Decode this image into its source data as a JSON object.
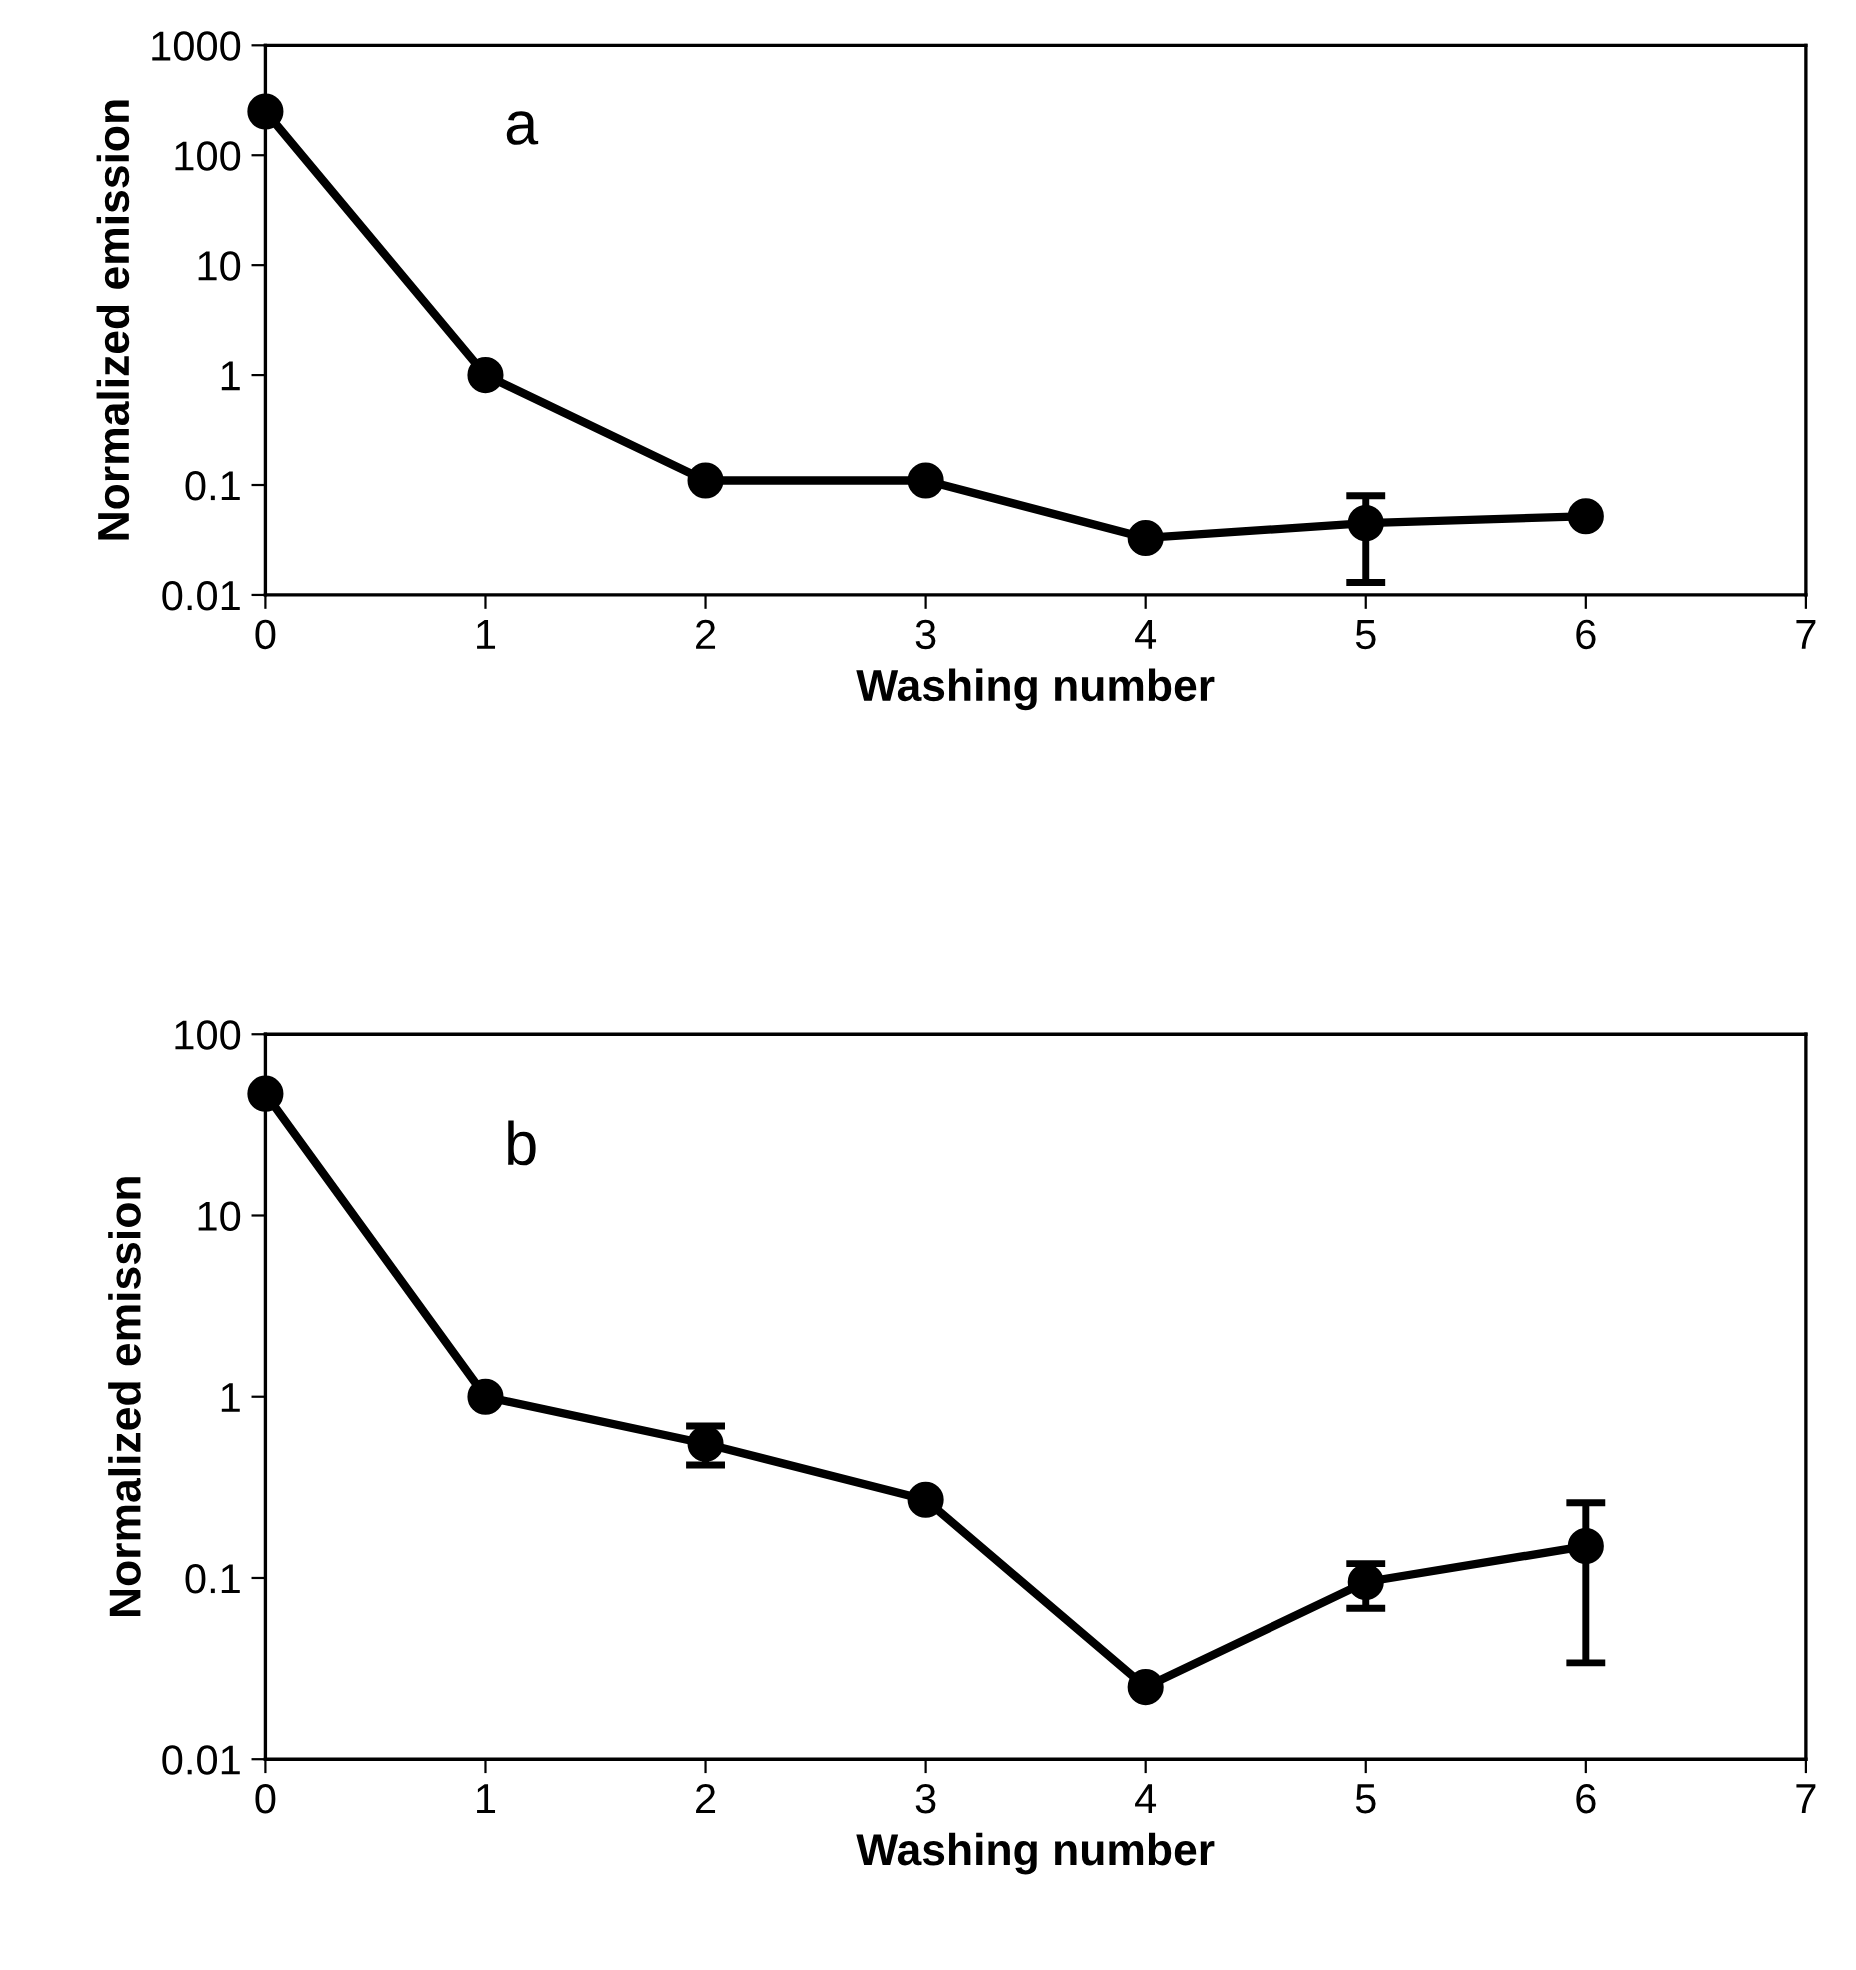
{
  "chart_data": [
    {
      "type": "line",
      "x": [
        0,
        1,
        2,
        3,
        4,
        5,
        6
      ],
      "series": [
        {
          "color": "#000000",
          "values": [
            250,
            1,
            0.11,
            0.11,
            0.033,
            0.045,
            0.052
          ],
          "errors": [
            null,
            null,
            null,
            null,
            null,
            [
              0.013,
              0.08
            ],
            null
          ]
        }
      ],
      "xlabel": "Washing number",
      "ylabel": "Normalized emission",
      "annotations": [
        "a"
      ],
      "log": "y",
      "xlim": [
        0,
        7
      ],
      "xticks": [
        0,
        1,
        2,
        3,
        4,
        5,
        6,
        7
      ],
      "ylim": [
        0.01,
        1000
      ],
      "yticks": [
        0.01,
        0.1,
        1,
        10,
        100,
        1000
      ],
      "marker": "circle",
      "line_style": "solid",
      "grid": false,
      "legend": false
    },
    {
      "type": "line",
      "x": [
        0,
        1,
        2,
        3,
        4,
        5,
        6
      ],
      "series": [
        {
          "color": "#000000",
          "values": [
            47,
            1,
            0.55,
            0.27,
            0.025,
            0.095,
            0.15
          ],
          "errors": [
            null,
            null,
            [
              0.42,
              0.69
            ],
            null,
            null,
            [
              0.068,
              0.12
            ],
            [
              0.034,
              0.26
            ]
          ]
        }
      ],
      "xlabel": "Washing number",
      "ylabel": "Normalized emission",
      "annotations": [
        "b"
      ],
      "log": "y",
      "xlim": [
        0,
        7
      ],
      "xticks": [
        0,
        1,
        2,
        3,
        4,
        5,
        6,
        7
      ],
      "ylim": [
        0.01,
        100
      ],
      "yticks": [
        0.01,
        0.1,
        1,
        10,
        100
      ],
      "marker": "circle",
      "line_style": "solid",
      "grid": false,
      "legend": false
    }
  ]
}
